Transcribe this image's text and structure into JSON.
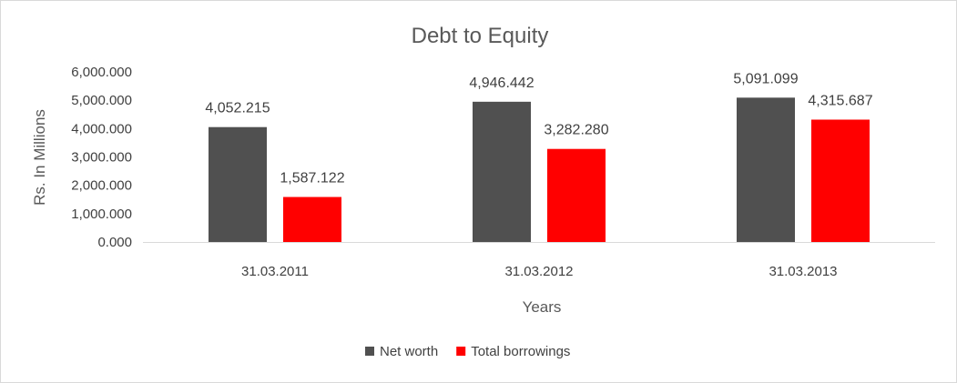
{
  "chart_data": {
    "type": "bar",
    "title": "Debt to Equity",
    "xlabel": "Years",
    "ylabel": "Rs. In Millions",
    "categories": [
      "31.03.2011",
      "31.03.2012",
      "31.03.2013"
    ],
    "series": [
      {
        "name": "Net worth",
        "color": "#505050",
        "values": [
          4052.215,
          4946.442,
          5091.099
        ],
        "labels": [
          "4,052.215",
          "4,946.442",
          "5,091.099"
        ]
      },
      {
        "name": "Total borrowings",
        "color": "#ff0000",
        "values": [
          1587.122,
          3282.28,
          4315.687
        ],
        "labels": [
          "1,587.122",
          "3,282.280",
          "4,315.687"
        ]
      }
    ],
    "ylim": [
      0,
      6000
    ],
    "yticks": [
      0,
      1000,
      2000,
      3000,
      4000,
      5000,
      6000
    ],
    "ytick_labels": [
      "0.000",
      "1,000.000",
      "2,000.000",
      "3,000.000",
      "4,000.000",
      "5,000.000",
      "6,000.000"
    ],
    "grid": false,
    "legend": "bottom-center"
  }
}
